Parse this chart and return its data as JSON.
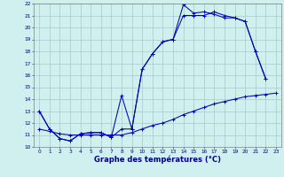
{
  "xlabel": "Graphe des températures (°C)",
  "background_color": "#d0f0f0",
  "grid_color": "#a8c8c8",
  "line_color": "#0000bb",
  "xlim": [
    -0.5,
    23.5
  ],
  "ylim": [
    10,
    22
  ],
  "yticks": [
    10,
    11,
    12,
    13,
    14,
    15,
    16,
    17,
    18,
    19,
    20,
    21,
    22
  ],
  "xticks": [
    0,
    1,
    2,
    3,
    4,
    5,
    6,
    7,
    8,
    9,
    10,
    11,
    12,
    13,
    14,
    15,
    16,
    17,
    18,
    19,
    20,
    21,
    22,
    23
  ],
  "line1_x": [
    0,
    1,
    2,
    3,
    4,
    5,
    6,
    7,
    8,
    9,
    10,
    11,
    12,
    13,
    14,
    15,
    16,
    17,
    18,
    19,
    20,
    21,
    22
  ],
  "line1_y": [
    13.0,
    11.5,
    10.7,
    10.5,
    11.1,
    11.2,
    11.2,
    10.8,
    11.5,
    11.5,
    16.5,
    17.8,
    18.8,
    19.0,
    21.9,
    21.2,
    21.3,
    21.1,
    20.8,
    20.8,
    20.5,
    18.0,
    15.7
  ],
  "line2_x": [
    0,
    1,
    2,
    3,
    4,
    5,
    6,
    7,
    8,
    9,
    10,
    11,
    12,
    13,
    14,
    15,
    16,
    17,
    18,
    19,
    20,
    21,
    22
  ],
  "line2_y": [
    13.0,
    11.5,
    10.7,
    10.5,
    11.1,
    11.2,
    11.2,
    10.8,
    14.3,
    11.5,
    16.5,
    17.8,
    18.8,
    19.0,
    21.0,
    21.0,
    21.0,
    21.3,
    21.0,
    20.8,
    20.5,
    18.0,
    15.7
  ],
  "line3_x": [
    0,
    1,
    2,
    3,
    4,
    5,
    6,
    7,
    8,
    9,
    10,
    11,
    12,
    13,
    14,
    15,
    16,
    17,
    18,
    19,
    20,
    21,
    22,
    23
  ],
  "line3_y": [
    11.5,
    11.3,
    11.1,
    11.0,
    11.0,
    11.0,
    11.0,
    11.0,
    11.0,
    11.2,
    11.5,
    11.8,
    12.0,
    12.3,
    12.7,
    13.0,
    13.3,
    13.6,
    13.8,
    14.0,
    14.2,
    14.3,
    14.4,
    14.5
  ],
  "ylabel_fontsize": 5,
  "xlabel_fontsize": 6,
  "tick_fontsize": 4.2
}
